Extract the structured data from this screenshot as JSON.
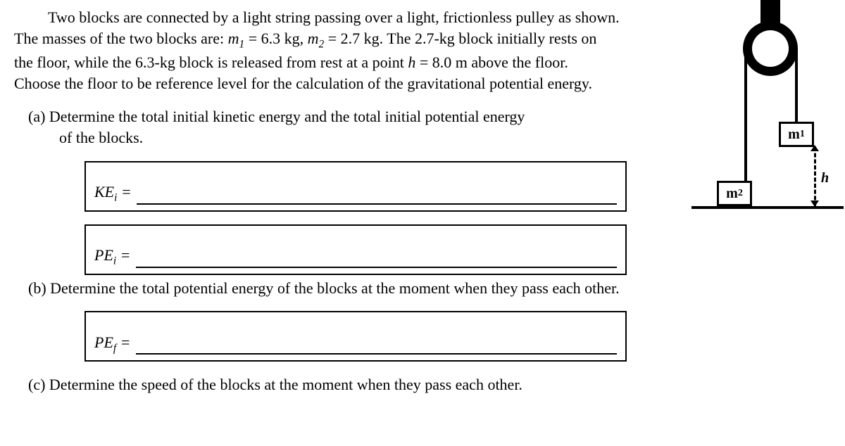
{
  "problem": {
    "intro_line1": "Two blocks are connected by a light string passing over a light, frictionless pulley as shown.",
    "intro_line2_prefix": "The masses of the two blocks are: ",
    "m1_label": "m",
    "m1_sub": "1",
    "m1_eq": " = 6.3 kg, ",
    "m2_label": "m",
    "m2_sub": "2",
    "m2_eq": " = 2.7 kg. The 2.7-kg block initially rests on",
    "intro_line3_prefix": "the floor, while the 6.3-kg block is released from rest at a point ",
    "h_label": "h",
    "h_eq": " = 8.0 m above the floor.",
    "intro_line4": "Choose the floor to be reference level for the calculation of the gravitational potential energy."
  },
  "parts": {
    "a": {
      "label": "(a)",
      "text1": "Determine the total initial kinetic energy and the total initial potential energy",
      "text2": "of the blocks.",
      "ke_label": "KE",
      "ke_sub": "i",
      "eq": " = ",
      "pe_label": "PE",
      "pe_sub": "i"
    },
    "b": {
      "label": "(b)",
      "text": "Determine the total potential energy of the blocks at the moment when they pass each other.",
      "pe_label": "PE",
      "pe_sub": "f",
      "eq": " = "
    },
    "c": {
      "label": "(c)",
      "text": "Determine the speed of the blocks at the moment when they pass each other."
    }
  },
  "diagram": {
    "m1": "m",
    "m1_sub": "1",
    "m2": "m",
    "m2_sub": "2",
    "h": "h"
  }
}
